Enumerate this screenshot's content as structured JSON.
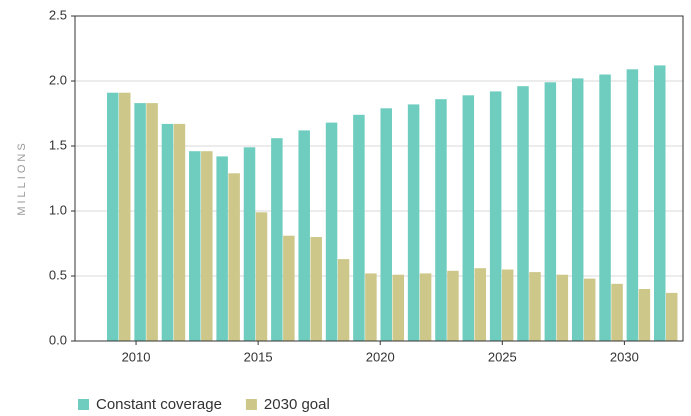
{
  "chart_data": {
    "type": "bar",
    "y_label": "MILLIONS",
    "categories": [
      null,
      null,
      null,
      null,
      null,
      null,
      null,
      null,
      null,
      null,
      null,
      null,
      null,
      null,
      null,
      null,
      null,
      null,
      null,
      null,
      null
    ],
    "series": [
      {
        "name": "Constant coverage",
        "color": "#6fcdbf",
        "values": [
          1.91,
          1.83,
          1.67,
          1.46,
          1.42,
          1.49,
          1.56,
          1.62,
          1.68,
          1.74,
          1.79,
          1.82,
          1.86,
          1.89,
          1.92,
          1.96,
          1.99,
          2.02,
          2.05,
          2.09,
          2.12
        ]
      },
      {
        "name": "2030 goal",
        "color": "#cdc88a",
        "values": [
          1.91,
          1.83,
          1.67,
          1.46,
          1.29,
          0.99,
          0.81,
          0.8,
          0.63,
          0.52,
          0.51,
          0.52,
          0.54,
          0.56,
          0.55,
          0.53,
          0.51,
          0.48,
          0.44,
          0.4,
          0.37
        ]
      }
    ],
    "xlim": [
      2007.5,
      2032.4
    ],
    "xticks": [
      2010,
      2015,
      2020,
      2025,
      2030
    ],
    "ylim": [
      0,
      2.5
    ],
    "yticks": [
      {
        "value": 0,
        "label": "0.0"
      },
      0.5,
      {
        "value": 1,
        "label": "1.0"
      },
      1.5,
      {
        "value": 2,
        "label": "2.0"
      },
      2.5
    ],
    "grid": true
  }
}
